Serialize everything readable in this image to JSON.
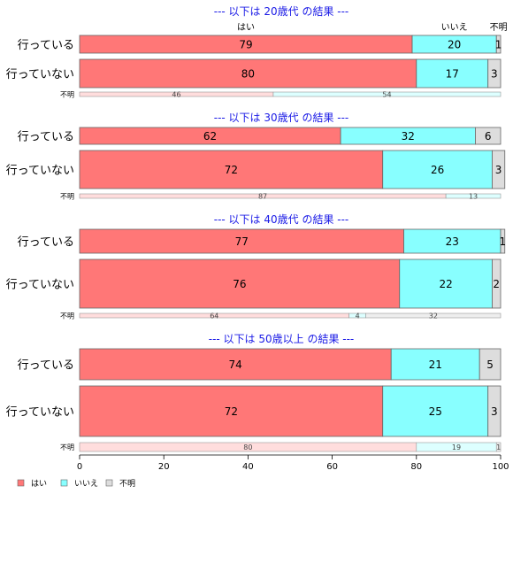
{
  "chart_data": {
    "type": "bar",
    "orientation": "horizontal",
    "stacked": "percent",
    "xlim": [
      0,
      100
    ],
    "xticks": [
      0,
      20,
      40,
      60,
      80,
      100
    ],
    "column_headers": [
      "はい",
      "いいえ",
      "不明"
    ],
    "legend": {
      "placement": "bottom-left",
      "entries": [
        {
          "label": "はい",
          "color": "#ff7777"
        },
        {
          "label": "いいえ",
          "color": "#88ffff"
        },
        {
          "label": "不明",
          "color": "#dddddd"
        }
      ]
    },
    "series_colors": [
      "#ff7777",
      "#88ffff",
      "#dddddd"
    ],
    "marginal_colors": [
      "#ffdddd",
      "#ddffff",
      "#eeeeee"
    ],
    "panels": [
      {
        "title": "--- 以下は 20歳代 の結果 ---",
        "rows": [
          {
            "label": "行っている",
            "values": [
              79,
              20,
              1
            ]
          },
          {
            "label": "行っていない",
            "values": [
              80,
              17,
              3
            ]
          }
        ],
        "marginal": {
          "label": "不明",
          "values": [
            46,
            54,
            0
          ]
        }
      },
      {
        "title": "--- 以下は 30歳代 の結果 ---",
        "rows": [
          {
            "label": "行っている",
            "values": [
              62,
              32,
              6
            ]
          },
          {
            "label": "行っていない",
            "values": [
              72,
              26,
              3
            ]
          }
        ],
        "marginal": {
          "label": "不明",
          "values": [
            87,
            13,
            0
          ]
        }
      },
      {
        "title": "--- 以下は 40歳代 の結果 ---",
        "rows": [
          {
            "label": "行っている",
            "values": [
              77,
              23,
              1
            ]
          },
          {
            "label": "行っていない",
            "values": [
              76,
              22,
              2
            ]
          }
        ],
        "marginal": {
          "label": "不明",
          "values": [
            64,
            4,
            32
          ]
        }
      },
      {
        "title": "--- 以下は 50歳以上 の結果 ---",
        "rows": [
          {
            "label": "行っている",
            "values": [
              74,
              21,
              5
            ]
          },
          {
            "label": "行っていない",
            "values": [
              72,
              25,
              3
            ]
          }
        ],
        "marginal": {
          "label": "不明",
          "values": [
            80,
            19,
            1
          ]
        }
      }
    ]
  }
}
